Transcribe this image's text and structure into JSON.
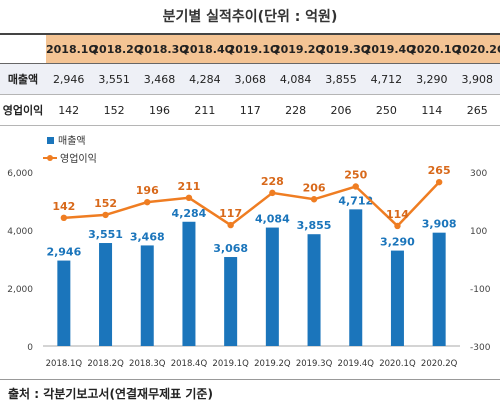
{
  "title": "분기별 실적추이(단위 : 억원)",
  "table": {
    "row_labels": [
      "매출액",
      "영업이익"
    ]
  },
  "chart_data": {
    "type": "bar",
    "categories": [
      "2018.1Q",
      "2018.2Q",
      "2018.3Q",
      "2018.4Q",
      "2019.1Q",
      "2019.2Q",
      "2019.3Q",
      "2019.4Q",
      "2020.1Q",
      "2020.2Q"
    ],
    "series": [
      {
        "name": "매출액",
        "type": "bar",
        "axis": "left",
        "values": [
          2946,
          3551,
          3468,
          4284,
          3068,
          4084,
          3855,
          4712,
          3290,
          3908
        ],
        "labels": [
          "2,946",
          "3,551",
          "3,468",
          "4,284",
          "3,068",
          "4,084",
          "3,855",
          "4,712",
          "3,290",
          "3,908"
        ]
      },
      {
        "name": "영업이익",
        "type": "line",
        "axis": "right",
        "values": [
          142,
          152,
          196,
          211,
          117,
          228,
          206,
          250,
          114,
          265
        ],
        "labels": [
          "142",
          "152",
          "196",
          "211",
          "117",
          "228",
          "206",
          "250",
          "114",
          "265"
        ]
      }
    ],
    "y_left": {
      "min": 0,
      "max": 6000,
      "ticks": [
        "0",
        "2,000",
        "4,000",
        "6,000"
      ]
    },
    "y_right": {
      "min": -300,
      "max": 300,
      "ticks": [
        "-300",
        "-100",
        "100",
        "300"
      ]
    },
    "legend_position": "top-left",
    "grid": false,
    "colors": {
      "bar": "#1b75bb",
      "line": "#ef7d22",
      "bar_label": "#1b75bb",
      "line_label": "#d8691b"
    }
  },
  "source": "출처 : 각분기보고서(연결재무제표 기준)"
}
